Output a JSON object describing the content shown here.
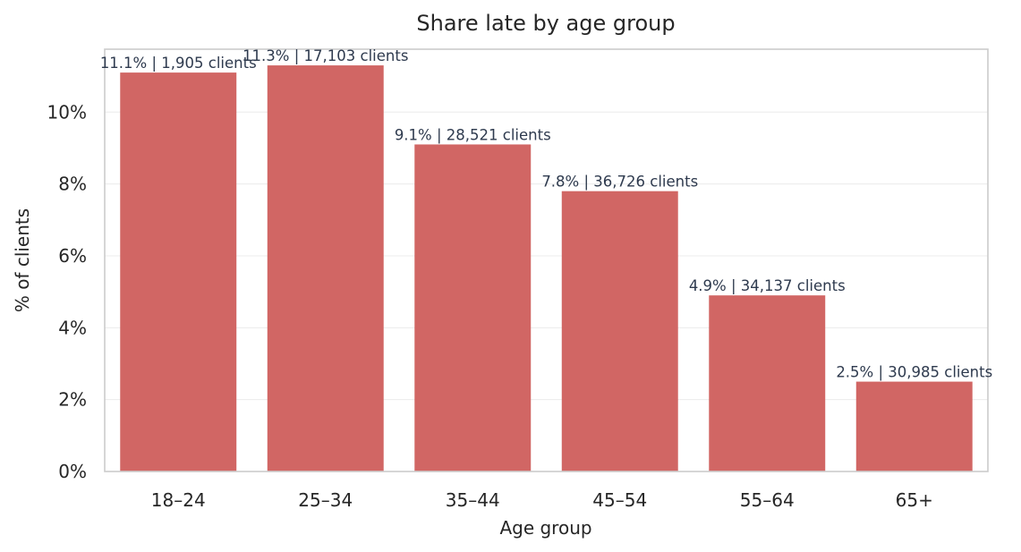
{
  "chart_data": {
    "type": "bar",
    "title": "Share late by age group",
    "xlabel": "Age group",
    "ylabel": "% of clients",
    "categories": [
      "18–24",
      "25–34",
      "35–44",
      "45–54",
      "55–64",
      "65+"
    ],
    "values": [
      11.1,
      11.3,
      9.1,
      7.8,
      4.9,
      2.5
    ],
    "data_labels": [
      "11.1%  |  1,905 clients",
      "11.3%  |  17,103 clients",
      "9.1%  |  28,521 clients",
      "7.8%  |  36,726 clients",
      "4.9%  |  34,137 clients",
      "2.5%  |  30,985 clients"
    ],
    "yticks": [
      0,
      2,
      4,
      6,
      8,
      10
    ],
    "ytick_labels": [
      "0%",
      "2%",
      "4%",
      "6%",
      "8%",
      "10%"
    ],
    "ylim": [
      0,
      11.75
    ],
    "grid": true,
    "bar_color": "#d16664",
    "grid_color": "#ececec",
    "frame_color": "#cccccc"
  }
}
